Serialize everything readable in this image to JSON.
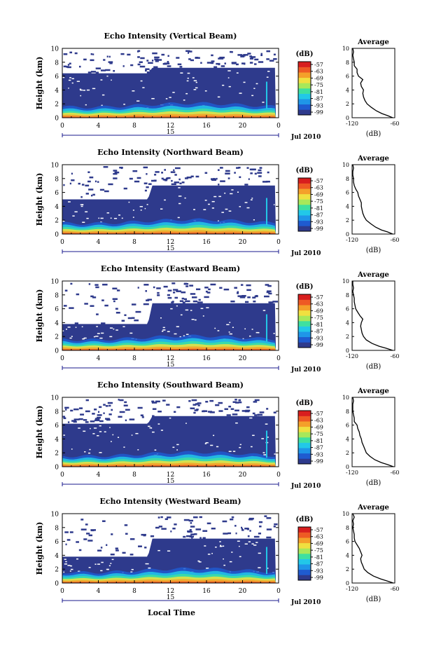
{
  "figure": {
    "x_axis_title": "Local Time",
    "colorbar_unit": "(dB)",
    "colorbar_ticks": [
      "-57",
      "-63",
      "-69",
      "-75",
      "-81",
      "-87",
      "-93",
      "-99"
    ],
    "colorbar_colors": [
      "#2e3a8c",
      "#1f5bd0",
      "#1f96e8",
      "#22c8e8",
      "#3ee0a0",
      "#a8e85a",
      "#f0e040",
      "#f4a02a",
      "#ee5a24",
      "#d81e1e"
    ],
    "background_color": "#2e3a8c"
  },
  "chart_data": [
    {
      "type": "heatmap",
      "title": "Echo Intensity (Vertical Beam)",
      "ylabel": "Height (km)",
      "x_ticks": [
        "0",
        "4",
        "8",
        "12",
        "16",
        "20",
        "0"
      ],
      "y_ticks": [
        "0",
        "2",
        "4",
        "6",
        "8",
        "10"
      ],
      "xlim": [
        0,
        24
      ],
      "ylim": [
        0,
        10
      ],
      "date_day": "15",
      "date_label": "Jul 2010",
      "colorbar": {
        "label": "(dB)",
        "range": [
          -99,
          -57
        ]
      },
      "echo_top_km": [
        [
          0,
          6.4
        ],
        [
          9.5,
          6.4
        ],
        [
          10,
          7.2
        ],
        [
          23.7,
          7.2
        ]
      ],
      "average_profile": {
        "title": "Average",
        "xlabel": "(dB)",
        "xticks": [
          "-120",
          "-60"
        ],
        "xlim": [
          -120,
          -60
        ],
        "ylim": [
          0,
          10
        ],
        "height_km": [
          0,
          0.3,
          0.6,
          1,
          1.5,
          2,
          2.5,
          3,
          3.5,
          4,
          4.5,
          5,
          5.5,
          6,
          6.5,
          7,
          7.5,
          8,
          8.5,
          9,
          9.5,
          10
        ],
        "intensity_db": [
          -63,
          -70,
          -78,
          -86,
          -93,
          -99,
          -102,
          -104,
          -105,
          -104,
          -107,
          -108,
          -105,
          -111,
          -113,
          -113,
          -117,
          -117,
          -118,
          -119,
          -118,
          -119
        ]
      }
    },
    {
      "type": "heatmap",
      "title": "Echo Intensity (Northward Beam)",
      "ylabel": "Height (km)",
      "x_ticks": [
        "0",
        "4",
        "8",
        "12",
        "16",
        "20",
        "0"
      ],
      "y_ticks": [
        "0",
        "2",
        "4",
        "6",
        "8",
        "10"
      ],
      "xlim": [
        0,
        24
      ],
      "ylim": [
        0,
        10
      ],
      "date_day": "15",
      "date_label": "Jul 2010",
      "colorbar": {
        "label": "(dB)",
        "range": [
          -99,
          -57
        ]
      },
      "echo_top_km": [
        [
          0,
          5.0
        ],
        [
          9.5,
          5.0
        ],
        [
          10,
          7.0
        ],
        [
          23.7,
          7.0
        ]
      ],
      "average_profile": {
        "title": "Average",
        "xlabel": "(dB)",
        "xticks": [
          "-120",
          "-60"
        ],
        "xlim": [
          -120,
          -60
        ],
        "ylim": [
          0,
          10
        ],
        "height_km": [
          0,
          0.3,
          0.6,
          1,
          1.5,
          2,
          2.5,
          3,
          3.5,
          4,
          4.5,
          5,
          5.5,
          6,
          6.5,
          7,
          7.5,
          8,
          8.5,
          9,
          9.5,
          10
        ],
        "intensity_db": [
          -63,
          -70,
          -79,
          -87,
          -94,
          -100,
          -103,
          -105,
          -106,
          -107,
          -107,
          -109,
          -111,
          -112,
          -115,
          -117,
          -118,
          -118,
          -119,
          -119,
          -118,
          -119
        ]
      }
    },
    {
      "type": "heatmap",
      "title": "Echo Intensity (Eastward Beam)",
      "ylabel": "Height (km)",
      "x_ticks": [
        "0",
        "4",
        "8",
        "12",
        "16",
        "20",
        "0"
      ],
      "y_ticks": [
        "0",
        "2",
        "4",
        "6",
        "8",
        "10"
      ],
      "xlim": [
        0,
        24
      ],
      "ylim": [
        0,
        10
      ],
      "date_day": "15",
      "date_label": "Jul 2010",
      "colorbar": {
        "label": "(dB)",
        "range": [
          -99,
          -57
        ]
      },
      "echo_top_km": [
        [
          0,
          3.8
        ],
        [
          9.5,
          3.8
        ],
        [
          10,
          6.8
        ],
        [
          23.7,
          6.8
        ]
      ],
      "average_profile": {
        "title": "Average",
        "xlabel": "(dB)",
        "xticks": [
          "-120",
          "-60"
        ],
        "xlim": [
          -120,
          -60
        ],
        "ylim": [
          0,
          10
        ],
        "height_km": [
          0,
          0.3,
          0.6,
          1,
          1.5,
          2,
          2.5,
          3,
          3.5,
          4,
          4.5,
          5,
          5.5,
          6,
          6.5,
          7,
          7.5,
          8,
          8.5,
          9,
          9.5,
          10
        ],
        "intensity_db": [
          -63,
          -72,
          -82,
          -92,
          -100,
          -104,
          -106,
          -107,
          -108,
          -107,
          -105,
          -109,
          -112,
          -115,
          -116,
          -117,
          -117,
          -118,
          -119,
          -118,
          -119,
          -119
        ]
      }
    },
    {
      "type": "heatmap",
      "title": "Echo Intensity (Southward Beam)",
      "ylabel": "Height (km)",
      "x_ticks": [
        "0",
        "4",
        "8",
        "12",
        "16",
        "20",
        "0"
      ],
      "y_ticks": [
        "0",
        "2",
        "4",
        "6",
        "8",
        "10"
      ],
      "xlim": [
        0,
        24
      ],
      "ylim": [
        0,
        10
      ],
      "date_day": "15",
      "date_label": "Jul 2010",
      "colorbar": {
        "label": "(dB)",
        "range": [
          -99,
          -57
        ]
      },
      "echo_top_km": [
        [
          0,
          6.2
        ],
        [
          9.5,
          6.2
        ],
        [
          10,
          7.3
        ],
        [
          23.7,
          7.3
        ]
      ],
      "average_profile": {
        "title": "Average",
        "xlabel": "(dB)",
        "xticks": [
          "-120",
          "-60"
        ],
        "xlim": [
          -120,
          -60
        ],
        "ylim": [
          0,
          10
        ],
        "height_km": [
          0,
          0.3,
          0.6,
          1,
          1.5,
          2,
          2.5,
          3,
          3.5,
          4,
          4.5,
          5,
          5.5,
          6,
          6.5,
          7,
          7.5,
          8,
          8.5,
          9,
          9.5,
          10
        ],
        "intensity_db": [
          -62,
          -70,
          -79,
          -88,
          -95,
          -100,
          -102,
          -104,
          -106,
          -107,
          -109,
          -110,
          -112,
          -113,
          -117,
          -117,
          -118,
          -119,
          -119,
          -119,
          -118,
          -119
        ]
      }
    },
    {
      "type": "heatmap",
      "title": "Echo Intensity (Westward Beam)",
      "ylabel": "Height (km)",
      "x_ticks": [
        "0",
        "4",
        "8",
        "12",
        "16",
        "20",
        "0"
      ],
      "y_ticks": [
        "0",
        "2",
        "4",
        "6",
        "8",
        "10"
      ],
      "xlim": [
        0,
        24
      ],
      "ylim": [
        0,
        10
      ],
      "date_day": "15",
      "date_label": "Jul 2010",
      "colorbar": {
        "label": "(dB)",
        "range": [
          -99,
          -57
        ]
      },
      "echo_top_km": [
        [
          0,
          3.8
        ],
        [
          9.5,
          3.8
        ],
        [
          10,
          6.4
        ],
        [
          23.7,
          6.4
        ]
      ],
      "average_profile": {
        "title": "Average",
        "xlabel": "(dB)",
        "xticks": [
          "-120",
          "-60"
        ],
        "xlim": [
          -120,
          -60
        ],
        "ylim": [
          0,
          10
        ],
        "height_km": [
          0,
          0.3,
          0.6,
          1,
          1.5,
          2,
          2.5,
          3,
          3.5,
          4,
          4.5,
          5,
          5.5,
          6,
          6.5,
          7,
          7.5,
          8,
          8.5,
          9,
          9.5,
          10
        ],
        "intensity_db": [
          -62,
          -71,
          -80,
          -90,
          -98,
          -103,
          -105,
          -107,
          -108,
          -106,
          -108,
          -110,
          -113,
          -116,
          -117,
          -117,
          -118,
          -119,
          -118,
          -119,
          -117,
          -119
        ]
      }
    }
  ]
}
